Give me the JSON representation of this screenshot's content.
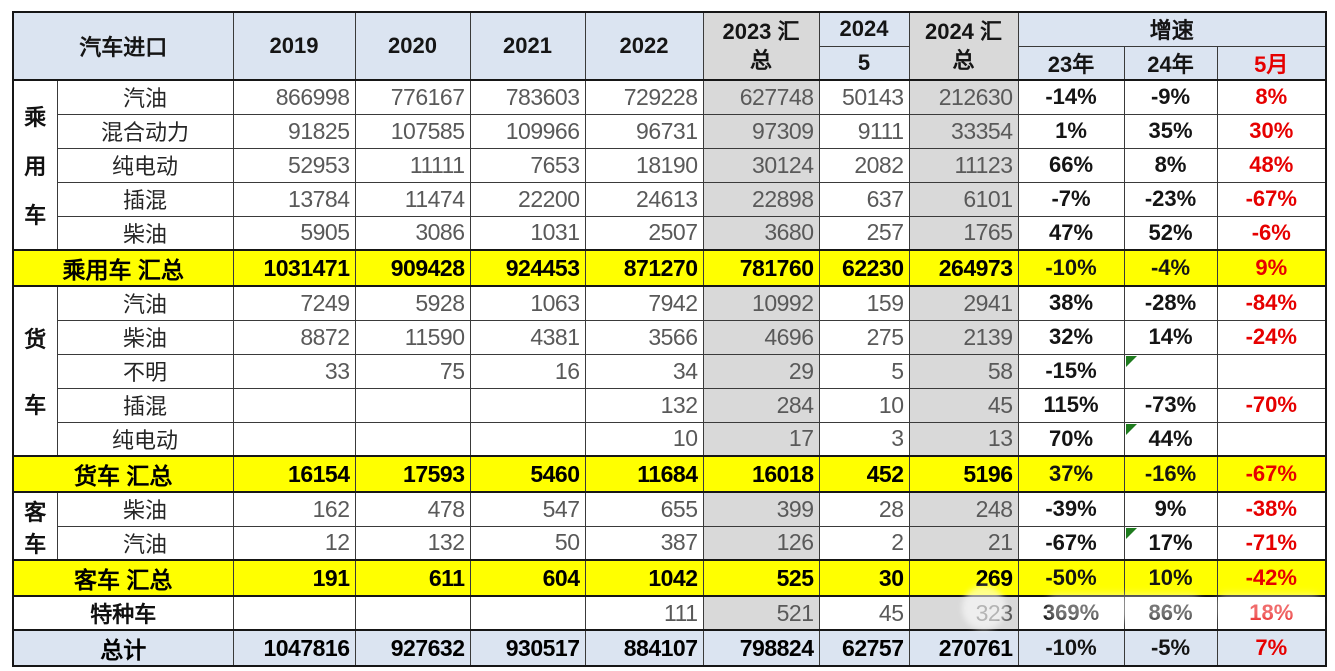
{
  "colors": {
    "header_bg": "#dbe4f1",
    "gray_col_bg": "#d9d9d9",
    "subtotal_bg": "#ffff00",
    "grand_bg": "#dbe4f1",
    "red_text": "#e60000",
    "number_text": "#595959",
    "note_green": "#1e7b1e"
  },
  "table": {
    "title": "汽车进口",
    "years": [
      "2019",
      "2020",
      "2021",
      "2022"
    ],
    "col_2023_total": "2023 汇总",
    "col_2024_may": {
      "line1": "2024",
      "line2": "5"
    },
    "col_2024_total": "2024 汇总",
    "growth_title": "增速",
    "growth_cols": [
      "23年",
      "24年",
      "5月"
    ],
    "groups": [
      {
        "label": "乘用车",
        "start": 0,
        "span": 5
      },
      {
        "label": "货车",
        "start": 6,
        "span": 5
      },
      {
        "label": "客车",
        "start": 12,
        "span": 2
      }
    ],
    "rows": [
      {
        "kind": "data",
        "label": "汽油",
        "values": [
          "866998",
          "776167",
          "783603",
          "729228",
          "627748",
          "50143",
          "212630",
          "-14%",
          "-9%",
          "8%"
        ]
      },
      {
        "kind": "data",
        "label": "混合动力",
        "values": [
          "91825",
          "107585",
          "109966",
          "96731",
          "97309",
          "9111",
          "33354",
          "1%",
          "35%",
          "30%"
        ]
      },
      {
        "kind": "data",
        "label": "纯电动",
        "values": [
          "52953",
          "11111",
          "7653",
          "18190",
          "30124",
          "2082",
          "11123",
          "66%",
          "8%",
          "48%"
        ]
      },
      {
        "kind": "data",
        "label": "插混",
        "values": [
          "13784",
          "11474",
          "22200",
          "24613",
          "22898",
          "637",
          "6101",
          "-7%",
          "-23%",
          "-67%"
        ]
      },
      {
        "kind": "data",
        "label": "柴油",
        "values": [
          "5905",
          "3086",
          "1031",
          "2507",
          "3680",
          "257",
          "1765",
          "47%",
          "52%",
          "-6%"
        ]
      },
      {
        "kind": "subtotal",
        "label": "乘用车 汇总",
        "values": [
          "1031471",
          "909428",
          "924453",
          "871270",
          "781760",
          "62230",
          "264973",
          "-10%",
          "-4%",
          "9%"
        ]
      },
      {
        "kind": "data",
        "label": "汽油",
        "values": [
          "7249",
          "5928",
          "1063",
          "7942",
          "10992",
          "159",
          "2941",
          "38%",
          "-28%",
          "-84%"
        ]
      },
      {
        "kind": "data",
        "label": "柴油",
        "values": [
          "8872",
          "11590",
          "4381",
          "3566",
          "4696",
          "275",
          "2139",
          "32%",
          "14%",
          "-24%"
        ]
      },
      {
        "kind": "data",
        "label": "不明",
        "values": [
          "33",
          "75",
          "16",
          "34",
          "29",
          "5",
          "58",
          "-15%",
          "",
          ""
        ],
        "notes": [
          8
        ]
      },
      {
        "kind": "data",
        "label": "插混",
        "values": [
          "",
          "",
          "",
          "132",
          "284",
          "10",
          "45",
          "115%",
          "-73%",
          "-70%"
        ]
      },
      {
        "kind": "data",
        "label": "纯电动",
        "values": [
          "",
          "",
          "",
          "10",
          "17",
          "3",
          "13",
          "70%",
          "44%",
          ""
        ],
        "notes": [
          8
        ]
      },
      {
        "kind": "subtotal",
        "label": "货车 汇总",
        "values": [
          "16154",
          "17593",
          "5460",
          "11684",
          "16018",
          "452",
          "5196",
          "37%",
          "-16%",
          "-67%"
        ]
      },
      {
        "kind": "data",
        "label": "柴油",
        "values": [
          "162",
          "478",
          "547",
          "655",
          "399",
          "28",
          "248",
          "-39%",
          "9%",
          "-38%"
        ]
      },
      {
        "kind": "data",
        "label": "汽油",
        "values": [
          "12",
          "132",
          "50",
          "387",
          "126",
          "2",
          "21",
          "-67%",
          "17%",
          "-71%"
        ],
        "notes": [
          8
        ]
      },
      {
        "kind": "subtotal",
        "label": "客车 汇总",
        "values": [
          "191",
          "611",
          "604",
          "1042",
          "525",
          "30",
          "269",
          "-50%",
          "10%",
          "-42%"
        ]
      },
      {
        "kind": "special",
        "label": "特种车",
        "values": [
          "",
          "",
          "",
          "111",
          "521",
          "45",
          "323",
          "369%",
          "86%",
          "18%"
        ]
      },
      {
        "kind": "grand",
        "label": "总计",
        "values": [
          "1047816",
          "927632",
          "930517",
          "884107",
          "798824",
          "62757",
          "270761",
          "-10%",
          "-5%",
          "7%"
        ]
      }
    ]
  }
}
